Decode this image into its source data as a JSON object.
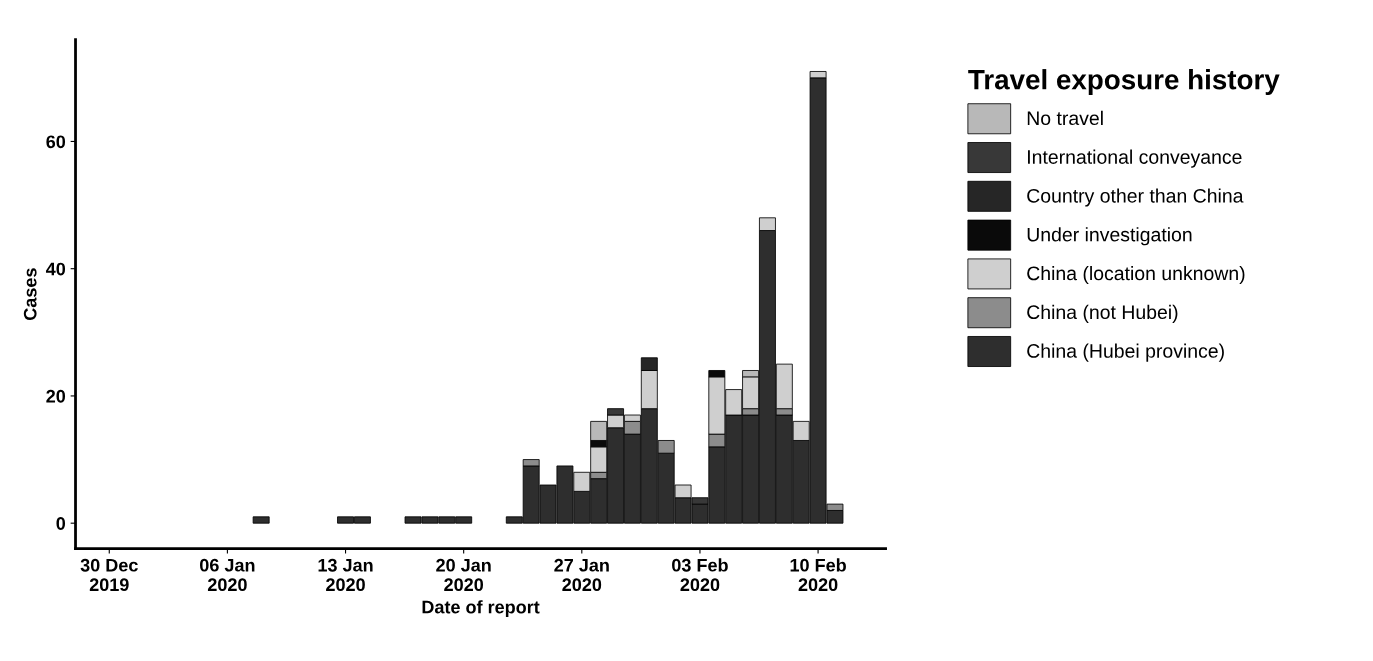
{
  "chart_data": {
    "type": "bar",
    "stacked": true,
    "xlabel": "Date of report",
    "ylabel": "Cases",
    "legend_title": "Travel exposure history",
    "legend": "right",
    "grid": false,
    "x": [
      "2020-01-08",
      "2020-01-13",
      "2020-01-14",
      "2020-01-17",
      "2020-01-18",
      "2020-01-19",
      "2020-01-20",
      "2020-01-23",
      "2020-01-24",
      "2020-01-25",
      "2020-01-26",
      "2020-01-27",
      "2020-01-28",
      "2020-01-29",
      "2020-01-30",
      "2020-01-31",
      "2020-02-01",
      "2020-02-02",
      "2020-02-03",
      "2020-02-04",
      "2020-02-05",
      "2020-02-06",
      "2020-02-07",
      "2020-02-08",
      "2020-02-09",
      "2020-02-10",
      "2020-02-11"
    ],
    "xlim": [
      "2019-12-28",
      "2020-02-14"
    ],
    "xticks": [
      {
        "value": "2019-12-30",
        "label": "30 Dec\n2019"
      },
      {
        "value": "2020-01-06",
        "label": "06 Jan\n2020"
      },
      {
        "value": "2020-01-13",
        "label": "13 Jan\n2020"
      },
      {
        "value": "2020-01-20",
        "label": "20 Jan\n2020"
      },
      {
        "value": "2020-01-27",
        "label": "27 Jan\n2020"
      },
      {
        "value": "2020-02-03",
        "label": "03 Feb\n2020"
      },
      {
        "value": "2020-02-10",
        "label": "10 Feb\n2020"
      }
    ],
    "ylim": [
      -4,
      76
    ],
    "yticks": [
      0,
      20,
      40,
      60
    ],
    "series": [
      {
        "name": "China (Hubei province)",
        "color": "#2e2e2e",
        "values": [
          1,
          1,
          1,
          1,
          1,
          1,
          1,
          1,
          9,
          6,
          9,
          5,
          7,
          15,
          14,
          18,
          11,
          4,
          3,
          12,
          17,
          17,
          46,
          17,
          13,
          70,
          2
        ]
      },
      {
        "name": "China (not Hubei)",
        "color": "#8c8c8c",
        "values": [
          null,
          null,
          null,
          null,
          null,
          null,
          null,
          null,
          1,
          null,
          null,
          null,
          1,
          null,
          2,
          null,
          2,
          null,
          null,
          2,
          null,
          1,
          null,
          1,
          null,
          null,
          1
        ]
      },
      {
        "name": "China (location unknown)",
        "color": "#cfcfcf",
        "values": [
          null,
          null,
          null,
          null,
          null,
          null,
          null,
          null,
          null,
          null,
          null,
          3,
          4,
          2,
          1,
          6,
          null,
          2,
          null,
          9,
          4,
          5,
          2,
          7,
          3,
          1,
          null
        ]
      },
      {
        "name": "Under investigation",
        "color": "#0a0a0a",
        "values": [
          null,
          null,
          null,
          null,
          null,
          null,
          null,
          null,
          null,
          null,
          null,
          null,
          1,
          null,
          null,
          null,
          null,
          null,
          null,
          1,
          null,
          null,
          null,
          null,
          null,
          null,
          null
        ]
      },
      {
        "name": "Country other than China",
        "color": "#262626",
        "values": [
          null,
          null,
          null,
          null,
          null,
          null,
          null,
          null,
          null,
          null,
          null,
          null,
          null,
          null,
          null,
          2,
          null,
          null,
          null,
          null,
          null,
          null,
          null,
          null,
          null,
          null,
          null
        ]
      },
      {
        "name": "International conveyance",
        "color": "#383838",
        "values": [
          null,
          null,
          null,
          null,
          null,
          null,
          null,
          null,
          null,
          null,
          null,
          null,
          null,
          1,
          null,
          null,
          null,
          null,
          1,
          null,
          null,
          null,
          null,
          null,
          null,
          null,
          null
        ]
      },
      {
        "name": "No travel",
        "color": "#b8b8b8",
        "values": [
          null,
          null,
          null,
          null,
          null,
          null,
          null,
          null,
          null,
          null,
          null,
          null,
          3,
          null,
          null,
          null,
          null,
          null,
          null,
          null,
          null,
          1,
          null,
          null,
          null,
          null,
          null
        ]
      }
    ]
  }
}
